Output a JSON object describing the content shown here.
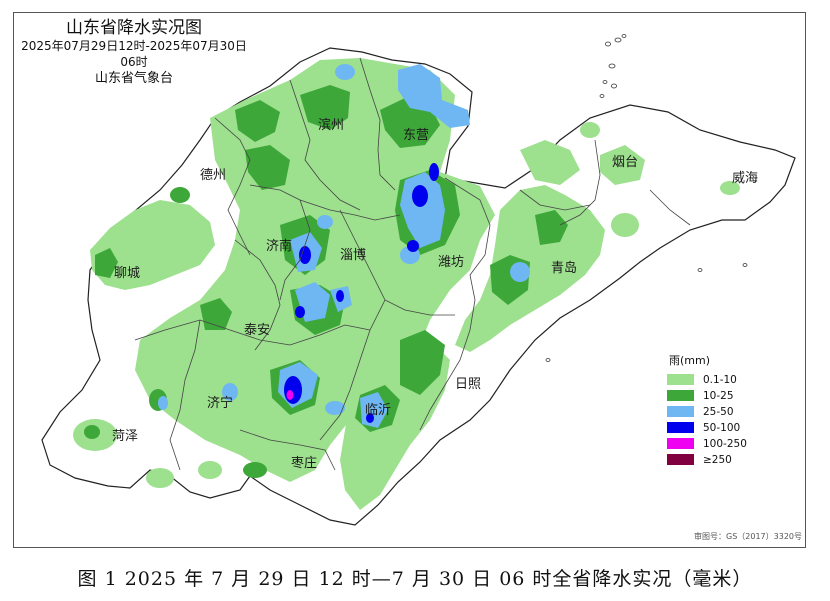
{
  "title": "山东省降水实况图",
  "period": "2025年07月29日12时-2025年07月30日06时",
  "source": "山东省气象台",
  "caption": "图 1  2025 年 7 月 29 日 12 时—7 月 30 日 06 时全省降水实况（毫米）",
  "approval_number": "审图号：GS（2017）3320号",
  "legend": {
    "title": "雨(mm)",
    "items": [
      {
        "label": "0.1-10",
        "color": "#9de08e"
      },
      {
        "label": "10-25",
        "color": "#3ea73a"
      },
      {
        "label": "25-50",
        "color": "#6fb7f2"
      },
      {
        "label": "50-100",
        "color": "#0000ee"
      },
      {
        "label": "100-250",
        "color": "#f000f0"
      },
      {
        "label": "≥250",
        "color": "#800040"
      }
    ]
  },
  "cities": [
    "滨州",
    "东营",
    "德州",
    "烟台",
    "威海",
    "济南",
    "淄博",
    "潍坊",
    "青岛",
    "聊城",
    "泰安",
    "日照",
    "济宁",
    "临沂",
    "菏泽",
    "枣庄"
  ]
}
